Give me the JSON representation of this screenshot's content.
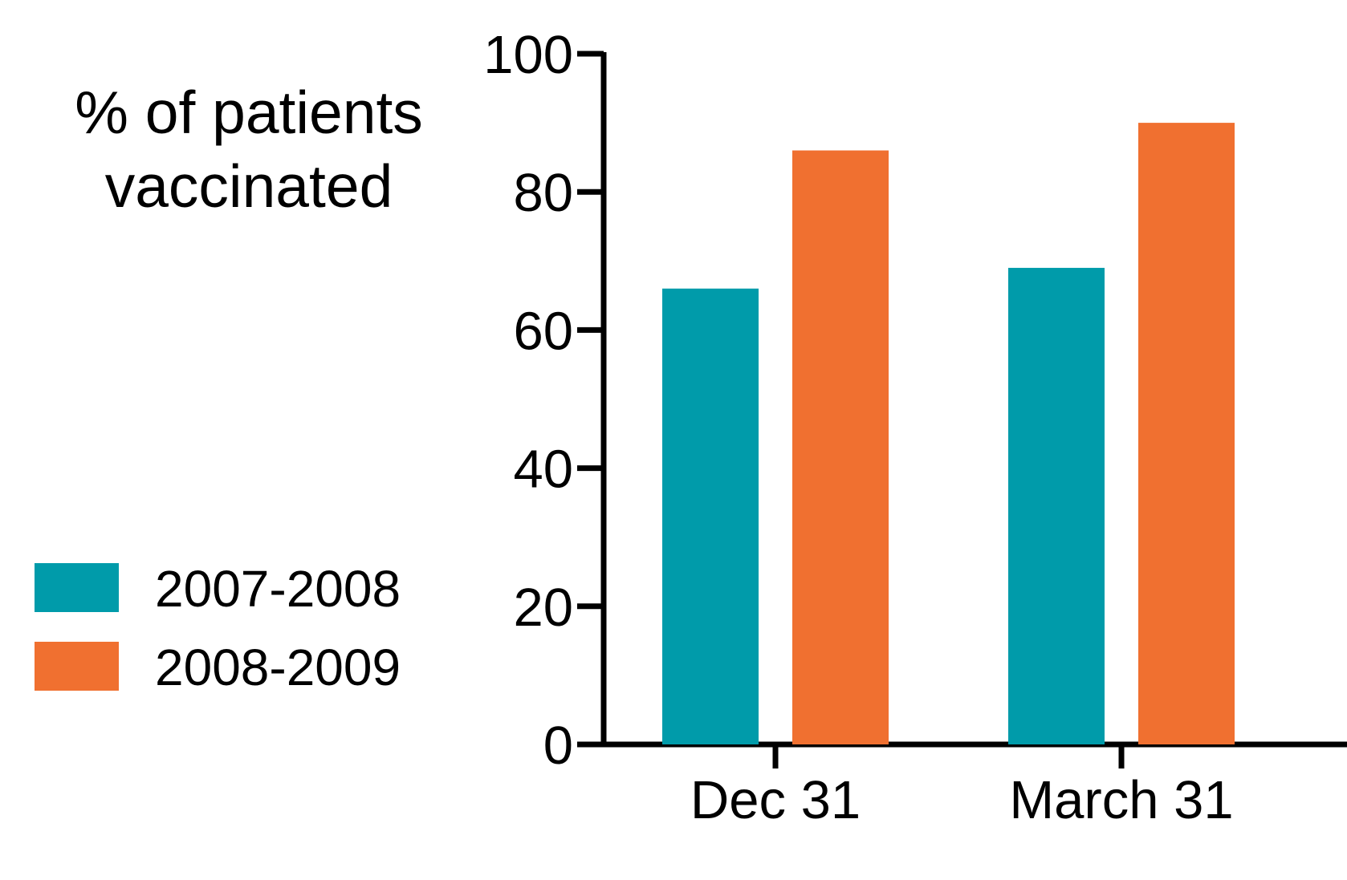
{
  "chart_data": {
    "type": "bar",
    "title": "",
    "ylabel": [
      "% of patients",
      "vaccinated"
    ],
    "xlabel": "",
    "ylim": [
      0,
      100
    ],
    "yticks": [
      0,
      20,
      40,
      60,
      80,
      100
    ],
    "categories": [
      "Dec 31",
      "March 31"
    ],
    "series": [
      {
        "name": "2007-2008",
        "color": "#009BAA",
        "values": [
          66,
          69
        ]
      },
      {
        "name": "2008-2009",
        "color": "#F07030",
        "values": [
          86,
          90
        ]
      }
    ],
    "legend_position": "left",
    "grid": false
  }
}
